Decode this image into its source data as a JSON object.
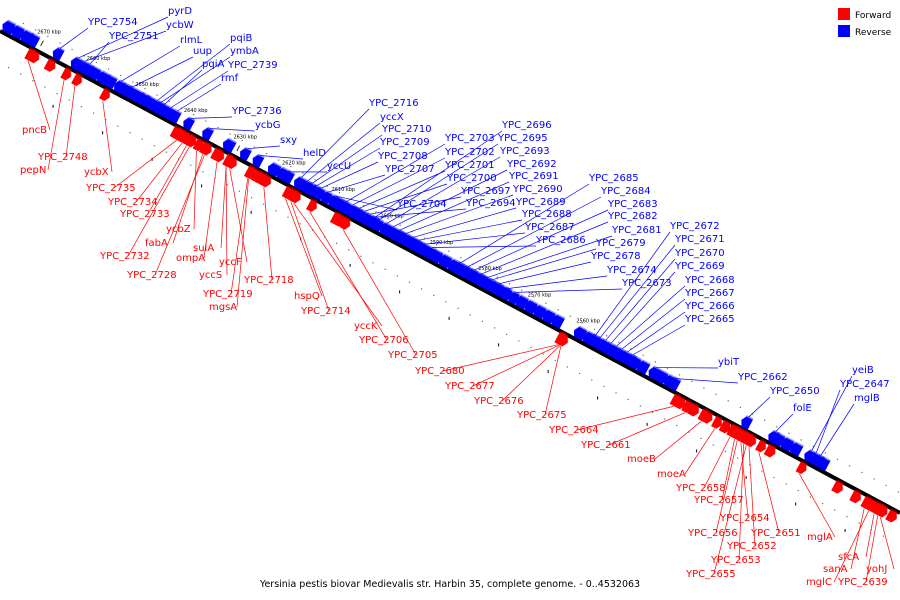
{
  "caption": "Yersinia pestis biovar Medievalis str. Harbin 35, complete genome. - 0..4532063",
  "legend": [
    {
      "label": "Forward",
      "color": "#ff0000"
    },
    {
      "label": "Reverse",
      "color": "#0000ff"
    }
  ],
  "colors": {
    "forward": "#ff0000",
    "reverse": "#0000ff",
    "axis": "#000000"
  },
  "scale": [
    {
      "label": "2670 kbp",
      "p": 0.042
    },
    {
      "label": "2660 kbp",
      "p": 0.097
    },
    {
      "label": "2650 kbp",
      "p": 0.151
    },
    {
      "label": "2640 kbp",
      "p": 0.205
    },
    {
      "label": "2630 kbp",
      "p": 0.26
    },
    {
      "label": "2620 kbp",
      "p": 0.314
    },
    {
      "label": "2610 kbp",
      "p": 0.369
    },
    {
      "label": "2600 kbp",
      "p": 0.423
    },
    {
      "label": "2590 kbp",
      "p": 0.478
    },
    {
      "label": "2580 kbp",
      "p": 0.532
    },
    {
      "label": "2570 kbp",
      "p": 0.587
    },
    {
      "label": "2560 kbp",
      "p": 0.641
    }
  ],
  "forward_genes": [
    "pncB",
    "YPC_2748",
    "pepN",
    "ycbX",
    "YPC_2735",
    "YPC_2734",
    "YPC_2733",
    "ycbZ",
    "fabA",
    "YPC_2732",
    "YPC_2728",
    "ompA",
    "sulA",
    "yccS",
    "yccF",
    "YPC_2719",
    "mgsA",
    "YPC_2718",
    "hspQ",
    "YPC_2714",
    "yccK",
    "YPC_2706",
    "YPC_2705",
    "YPC_2680",
    "YPC_2677",
    "YPC_2676",
    "YPC_2675",
    "YPC_2664",
    "YPC_2661",
    "moeB",
    "moeA",
    "YPC_2658",
    "YPC_2657",
    "YPC_2656",
    "YPC_2654",
    "YPC_2652",
    "YPC_2653",
    "YPC_2651",
    "YPC_2655",
    "mglA",
    "sanA",
    "mglC",
    "sfcA",
    "yohJ",
    "YPC_2639"
  ],
  "reverse_genes": [
    "YPC_2754",
    "pyrD",
    "ycbW",
    "YPC_2751",
    "rlmL",
    "uup",
    "pqiB",
    "ymbA",
    "pqiA",
    "YPC_2739",
    "rmf",
    "YPC_2736",
    "ycbG",
    "sxy",
    "helD",
    "yccU",
    "YPC_2716",
    "yccX",
    "YPC_2710",
    "YPC_2709",
    "YPC_2708",
    "YPC_2707",
    "YPC_2704",
    "YPC_2703",
    "YPC_2702",
    "YPC_2701",
    "YPC_2700",
    "YPC_2697",
    "YPC_2694",
    "YPC_2696",
    "YPC_2695",
    "YPC_2693",
    "YPC_2692",
    "YPC_2691",
    "YPC_2690",
    "YPC_2689",
    "YPC_2688",
    "YPC_2687",
    "YPC_2686",
    "YPC_2685",
    "YPC_2684",
    "YPC_2683",
    "YPC_2682",
    "YPC_2681",
    "YPC_2679",
    "YPC_2678",
    "YPC_2674",
    "YPC_2673",
    "YPC_2672",
    "YPC_2671",
    "YPC_2670",
    "YPC_2669",
    "YPC_2668",
    "YPC_2667",
    "YPC_2666",
    "YPC_2665",
    "ybiT",
    "YPC_2662",
    "YPC_2650",
    "folE",
    "yeiB",
    "YPC_2647",
    "mglB"
  ]
}
